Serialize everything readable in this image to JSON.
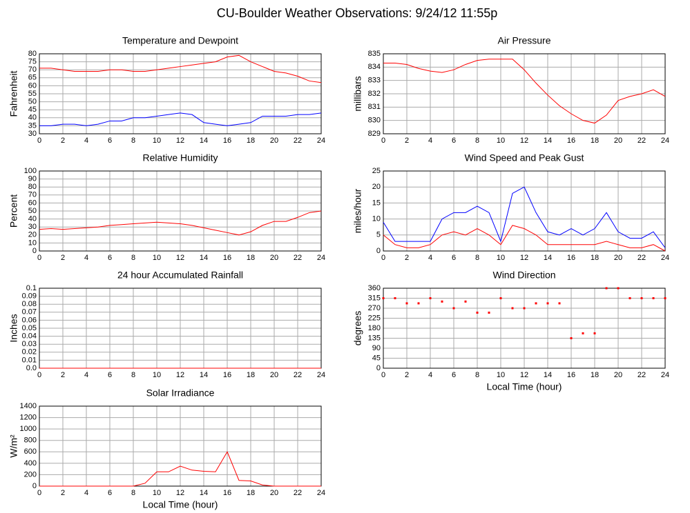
{
  "title": "CU-Boulder Weather Observations: 9/24/12 11:55p",
  "chart_data": [
    {
      "type": "line",
      "title": "Temperature and Dewpoint",
      "ylabel": "Fahrenheit",
      "x": [
        0,
        1,
        2,
        3,
        4,
        5,
        6,
        7,
        8,
        9,
        10,
        11,
        12,
        13,
        14,
        15,
        16,
        17,
        18,
        19,
        20,
        21,
        22,
        23,
        24
      ],
      "xlim": [
        0,
        24
      ],
      "xticks": [
        0,
        2,
        4,
        6,
        8,
        10,
        12,
        14,
        16,
        18,
        20,
        22,
        24
      ],
      "ylim": [
        30,
        80
      ],
      "yticks": [
        30,
        35,
        40,
        45,
        50,
        55,
        60,
        65,
        70,
        75,
        80
      ],
      "series": [
        {
          "name": "Temperature",
          "color": "#ff0000",
          "values": [
            71,
            71,
            70,
            69,
            69,
            69,
            70,
            70,
            69,
            69,
            70,
            71,
            72,
            73,
            74,
            75,
            78,
            79,
            75,
            72,
            69,
            68,
            66,
            63,
            62
          ]
        },
        {
          "name": "Dewpoint",
          "color": "#0000ff",
          "values": [
            35,
            35,
            36,
            36,
            35,
            36,
            38,
            38,
            40,
            40,
            41,
            42,
            43,
            42,
            37,
            36,
            35,
            36,
            37,
            41,
            41,
            41,
            42,
            42,
            43
          ]
        }
      ]
    },
    {
      "type": "line",
      "title": "Air Pressure",
      "ylabel": "millibars",
      "x": [
        0,
        1,
        2,
        3,
        4,
        5,
        6,
        7,
        8,
        9,
        10,
        11,
        12,
        13,
        14,
        15,
        16,
        17,
        18,
        19,
        20,
        21,
        22,
        23,
        24
      ],
      "xlim": [
        0,
        24
      ],
      "xticks": [
        0,
        2,
        4,
        6,
        8,
        10,
        12,
        14,
        16,
        18,
        20,
        22,
        24
      ],
      "ylim": [
        829,
        835
      ],
      "yticks": [
        829,
        830,
        831,
        832,
        833,
        834,
        835
      ],
      "series": [
        {
          "name": "Pressure",
          "color": "#ff0000",
          "values": [
            834.3,
            834.3,
            834.2,
            833.9,
            833.7,
            833.6,
            833.8,
            834.2,
            834.5,
            834.6,
            834.6,
            834.6,
            833.8,
            832.8,
            831.9,
            831.1,
            830.5,
            830.0,
            829.8,
            830.4,
            831.5,
            831.8,
            832.0,
            832.3,
            831.8
          ]
        }
      ]
    },
    {
      "type": "line",
      "title": "Relative Humidity",
      "ylabel": "Percent",
      "x": [
        0,
        1,
        2,
        3,
        4,
        5,
        6,
        7,
        8,
        9,
        10,
        11,
        12,
        13,
        14,
        15,
        16,
        17,
        18,
        19,
        20,
        21,
        22,
        23,
        24
      ],
      "xlim": [
        0,
        24
      ],
      "xticks": [
        0,
        2,
        4,
        6,
        8,
        10,
        12,
        14,
        16,
        18,
        20,
        22,
        24
      ],
      "ylim": [
        0,
        100
      ],
      "yticks": [
        0,
        10,
        20,
        30,
        40,
        50,
        60,
        70,
        80,
        90,
        100
      ],
      "series": [
        {
          "name": "Humidity",
          "color": "#ff0000",
          "values": [
            27,
            28,
            27,
            28,
            29,
            30,
            32,
            33,
            34,
            35,
            36,
            35,
            34,
            32,
            29,
            26,
            23,
            20,
            24,
            32,
            37,
            37,
            42,
            48,
            50
          ]
        }
      ]
    },
    {
      "type": "line",
      "title": "Wind Speed and Peak Gust",
      "ylabel": "miles/hour",
      "x": [
        0,
        1,
        2,
        3,
        4,
        5,
        6,
        7,
        8,
        9,
        10,
        11,
        12,
        13,
        14,
        15,
        16,
        17,
        18,
        19,
        20,
        21,
        22,
        23,
        24
      ],
      "xlim": [
        0,
        24
      ],
      "xticks": [
        0,
        2,
        4,
        6,
        8,
        10,
        12,
        14,
        16,
        18,
        20,
        22,
        24
      ],
      "ylim": [
        0,
        25
      ],
      "yticks": [
        0,
        5,
        10,
        15,
        20,
        25
      ],
      "series": [
        {
          "name": "Peak Gust",
          "color": "#0000ff",
          "values": [
            9,
            3,
            3,
            3,
            3,
            10,
            12,
            12,
            14,
            12,
            3,
            18,
            20,
            12,
            6,
            5,
            7,
            5,
            7,
            12,
            6,
            4,
            4,
            6,
            1
          ]
        },
        {
          "name": "Wind Speed",
          "color": "#ff0000",
          "values": [
            5,
            2,
            1,
            1,
            2,
            5,
            6,
            5,
            7,
            5,
            2,
            8,
            7,
            5,
            2,
            2,
            2,
            2,
            2,
            3,
            2,
            1,
            1,
            2,
            0
          ]
        }
      ]
    },
    {
      "type": "line",
      "title": "24 hour Accumulated Rainfall",
      "ylabel": "Inches",
      "x": [
        0,
        1,
        2,
        3,
        4,
        5,
        6,
        7,
        8,
        9,
        10,
        11,
        12,
        13,
        14,
        15,
        16,
        17,
        18,
        19,
        20,
        21,
        22,
        23,
        24
      ],
      "xlim": [
        0,
        24
      ],
      "xticks": [
        0,
        2,
        4,
        6,
        8,
        10,
        12,
        14,
        16,
        18,
        20,
        22,
        24
      ],
      "ylim": [
        0,
        0.1
      ],
      "yticks": [
        {
          "value": 0,
          "label": "0.0"
        },
        0.01,
        0.02,
        0.03,
        0.04,
        0.05,
        0.06,
        0.07,
        0.08,
        0.09,
        0.1
      ],
      "series": [
        {
          "name": "Rainfall",
          "color": "#ff0000",
          "values": [
            0,
            0,
            0,
            0,
            0,
            0,
            0,
            0,
            0,
            0,
            0,
            0,
            0,
            0,
            0,
            0,
            0,
            0,
            0,
            0,
            0,
            0,
            0,
            0,
            0
          ]
        }
      ]
    },
    {
      "type": "scatter",
      "title": "Wind Direction",
      "ylabel": "degrees",
      "xlabel": "Local Time (hour)",
      "x": [
        0,
        1,
        2,
        3,
        4,
        5,
        6,
        7,
        8,
        9,
        10,
        11,
        12,
        13,
        14,
        15,
        16,
        17,
        18,
        19,
        20,
        21,
        22,
        23,
        24
      ],
      "xlim": [
        0,
        24
      ],
      "xticks": [
        0,
        2,
        4,
        6,
        8,
        10,
        12,
        14,
        16,
        18,
        20,
        22,
        24
      ],
      "ylim": [
        0,
        360
      ],
      "yticks": [
        0,
        45,
        90,
        135,
        180,
        225,
        270,
        315,
        360
      ],
      "series": [
        {
          "name": "Direction",
          "color": "#ff0000",
          "values": [
            315,
            315,
            292,
            292,
            315,
            300,
            270,
            300,
            250,
            250,
            315,
            270,
            270,
            292,
            292,
            292,
            135,
            157,
            157,
            360,
            360,
            315,
            315,
            315,
            315
          ]
        }
      ]
    },
    {
      "type": "line",
      "title": "Solar Irradiance",
      "ylabel": "W/m²",
      "xlabel": "Local Time (hour)",
      "x": [
        0,
        1,
        2,
        3,
        4,
        5,
        6,
        7,
        8,
        9,
        10,
        11,
        12,
        13,
        14,
        15,
        16,
        17,
        18,
        19,
        20,
        21,
        22,
        23,
        24
      ],
      "xlim": [
        0,
        24
      ],
      "xticks": [
        0,
        2,
        4,
        6,
        8,
        10,
        12,
        14,
        16,
        18,
        20,
        22,
        24
      ],
      "ylim": [
        0,
        1400
      ],
      "yticks": [
        0,
        200,
        400,
        600,
        800,
        1000,
        1200,
        1400
      ],
      "series": [
        {
          "name": "Irradiance",
          "color": "#ff0000",
          "values": [
            0,
            0,
            0,
            0,
            0,
            0,
            0,
            0,
            0,
            50,
            250,
            250,
            350,
            280,
            260,
            250,
            600,
            100,
            90,
            20,
            0,
            0,
            0,
            0,
            0
          ]
        }
      ]
    }
  ]
}
